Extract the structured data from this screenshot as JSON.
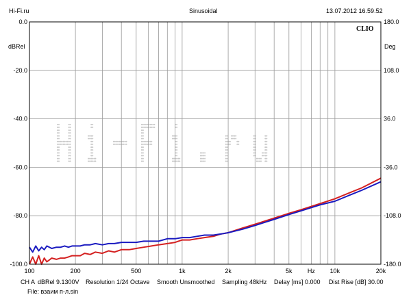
{
  "header": {
    "site": "Hi-Fi.ru",
    "mode": "Sinusoidal",
    "datetime": "13.07.2012 16.59.52"
  },
  "brand": "CLIO",
  "watermark": "Hi-Fi.ru",
  "footer": {
    "line1": [
      "CH A",
      "dBRel 9.1300V",
      "Resolution 1/24 Octave",
      "Smooth Unsmoothed",
      "Sampling 48kHz",
      "Delay [ms] 0.000",
      "Dist Rise [dB] 30.00"
    ],
    "line2": "File: взаим п-л.sin"
  },
  "colors": {
    "background": "#ffffff",
    "grid": "#9a9a9a",
    "frame": "#000000",
    "series_red": "#d42020",
    "series_blue": "#1a1ac0",
    "watermark": "#c8c8c8"
  },
  "chart_data": {
    "type": "line",
    "x_scale": "log",
    "xlim": [
      100,
      20000
    ],
    "ylim": [
      -100,
      0
    ],
    "ylim_right": [
      -180,
      180
    ],
    "ylabel": "dBRel",
    "ylabel_right": "Deg",
    "xlabel": "Hz",
    "x_ticks": [
      {
        "value": 100,
        "label": "100"
      },
      {
        "value": 200,
        "label": "200"
      },
      {
        "value": 500,
        "label": "500"
      },
      {
        "value": 1000,
        "label": "1k"
      },
      {
        "value": 2000,
        "label": "2k"
      },
      {
        "value": 5000,
        "label": "5k"
      },
      {
        "value": 10000,
        "label": "10k"
      },
      {
        "value": 20000,
        "label": "20k"
      }
    ],
    "y_ticks": [
      {
        "value": 0,
        "label": "0.0"
      },
      {
        "value": -20,
        "label": "-20.0"
      },
      {
        "value": -40,
        "label": "-40.0"
      },
      {
        "value": -60,
        "label": "-60.0"
      },
      {
        "value": -80,
        "label": "-80.0"
      },
      {
        "value": -100,
        "label": "-100.0"
      }
    ],
    "y_ticks_right": [
      "180.0",
      "108.0",
      "36.0",
      "-36.0",
      "-108.0",
      "-180.0"
    ],
    "series": [
      {
        "color": "red",
        "x": [
          100,
          105,
          110,
          115,
          120,
          125,
          130,
          140,
          150,
          160,
          170,
          180,
          190,
          200,
          215,
          230,
          250,
          270,
          300,
          330,
          360,
          400,
          450,
          500,
          560,
          630,
          700,
          800,
          900,
          1000,
          1120,
          1250,
          1400,
          1600,
          1800,
          2000,
          2500,
          3000,
          4000,
          5000,
          6000,
          8000,
          10000,
          12500,
          15000,
          20000
        ],
        "y": [
          -100,
          -97,
          -100,
          -96.5,
          -100,
          -97.5,
          -99,
          -97.5,
          -98,
          -97.5,
          -97.5,
          -97,
          -96.5,
          -96.5,
          -96.5,
          -95.5,
          -96,
          -95,
          -95.5,
          -94.5,
          -95,
          -94,
          -94,
          -93.5,
          -93,
          -92.5,
          -92,
          -91.5,
          -91,
          -90,
          -90,
          -89.5,
          -89,
          -88.5,
          -87.5,
          -87,
          -85,
          -83.5,
          -81,
          -79,
          -77.5,
          -75,
          -73,
          -70.5,
          -68.5,
          -64.5
        ]
      },
      {
        "color": "blue",
        "x": [
          100,
          105,
          110,
          115,
          120,
          125,
          130,
          140,
          150,
          160,
          170,
          180,
          190,
          200,
          215,
          230,
          250,
          270,
          300,
          330,
          360,
          400,
          450,
          500,
          560,
          630,
          700,
          800,
          900,
          1000,
          1120,
          1250,
          1400,
          1600,
          1800,
          2000,
          2500,
          3000,
          4000,
          5000,
          6000,
          8000,
          10000,
          12500,
          15000,
          20000
        ],
        "y": [
          -93,
          -95,
          -92.5,
          -94.5,
          -93,
          -94,
          -92.5,
          -93.5,
          -93,
          -93,
          -92.5,
          -93,
          -92.5,
          -92.5,
          -92.5,
          -92,
          -92,
          -91.5,
          -92,
          -91.5,
          -91.5,
          -91,
          -91,
          -91,
          -90.5,
          -90.5,
          -90.5,
          -89.5,
          -89.5,
          -89,
          -89,
          -88.5,
          -88,
          -88,
          -87.5,
          -87,
          -85.5,
          -84,
          -81.5,
          -79.5,
          -78,
          -75.5,
          -74,
          -71.5,
          -69.5,
          -66
        ]
      }
    ]
  }
}
